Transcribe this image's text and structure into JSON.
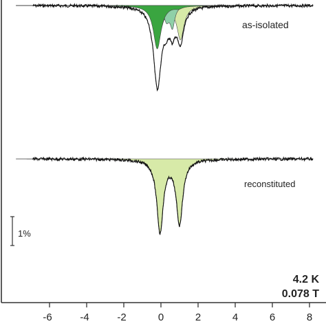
{
  "chart_data": {
    "type": "line",
    "xlabel": "",
    "ylabel": "",
    "xlim": [
      -7.8,
      8.2
    ],
    "xticks": [
      -6,
      -4,
      -2,
      0,
      2,
      4,
      6,
      8
    ],
    "xtick_labels": [
      "-6",
      "-4",
      "-2",
      "0",
      "2",
      "4",
      "6",
      "8"
    ],
    "scale_bar_label": "1%",
    "conditions": [
      "4.2 K",
      "0.078 T"
    ],
    "spectra": [
      {
        "label": "as-isolated",
        "absorption_percent_total": 2.4,
        "components": [
          {
            "color": "#3aa540",
            "centers": [
              -0.2,
              0.95
            ],
            "depths": [
              1.05,
              0.05
            ],
            "widths": [
              0.5,
              0.45
            ]
          },
          {
            "color": "#8fd0a8",
            "centers": [
              0.3,
              0.62
            ],
            "depths": [
              0.35,
              0.5
            ],
            "widths": [
              0.35,
              0.3
            ]
          },
          {
            "color": "#d7eaa8",
            "centers": [
              -0.18,
              1.05
            ],
            "depths": [
              0.9,
              0.8
            ],
            "widths": [
              0.5,
              0.45
            ]
          }
        ]
      },
      {
        "label": "reconstituted",
        "components": [
          {
            "color": "#d7eaa8",
            "centers": [
              -0.05,
              1.0
            ],
            "depths": [
              1.75,
              1.55
            ],
            "widths": [
              0.42,
              0.42
            ]
          }
        ]
      }
    ]
  }
}
